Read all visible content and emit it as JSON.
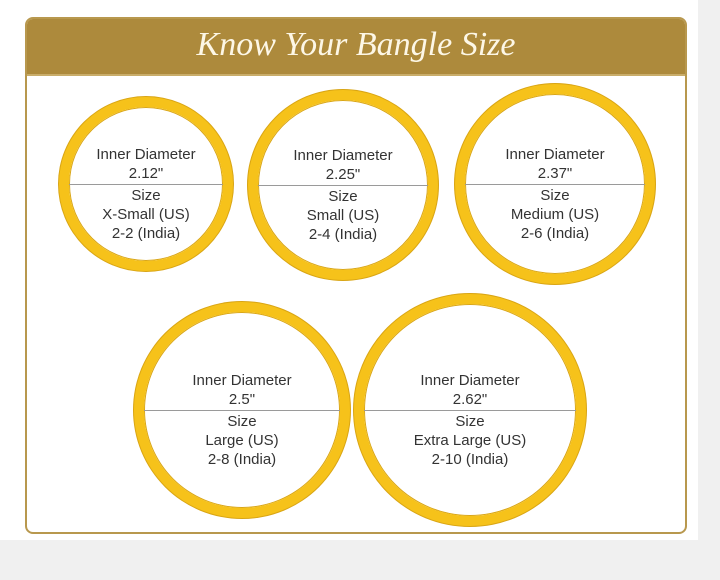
{
  "title": "Know Your Bangle Size",
  "colors": {
    "header": "#ad8a3c",
    "ring": "#f6c21a"
  },
  "sizes": [
    {
      "diameter_label": "Inner Diameter",
      "diameter": "2.12\"",
      "size_label": "Size",
      "us": "X-Small (US)",
      "india": "2-2 (India)"
    },
    {
      "diameter_label": "Inner Diameter",
      "diameter": "2.25\"",
      "size_label": "Size",
      "us": "Small (US)",
      "india": "2-4 (India)"
    },
    {
      "diameter_label": "Inner Diameter",
      "diameter": "2.37\"",
      "size_label": "Size",
      "us": "Medium (US)",
      "india": "2-6 (India)"
    },
    {
      "diameter_label": "Inner Diameter",
      "diameter": "2.5\"",
      "size_label": "Size",
      "us": "Large (US)",
      "india": "2-8 (India)"
    },
    {
      "diameter_label": "Inner Diameter",
      "diameter": "2.62\"",
      "size_label": "Size",
      "us": "Extra Large (US)",
      "india": "2-10 (India)"
    }
  ]
}
